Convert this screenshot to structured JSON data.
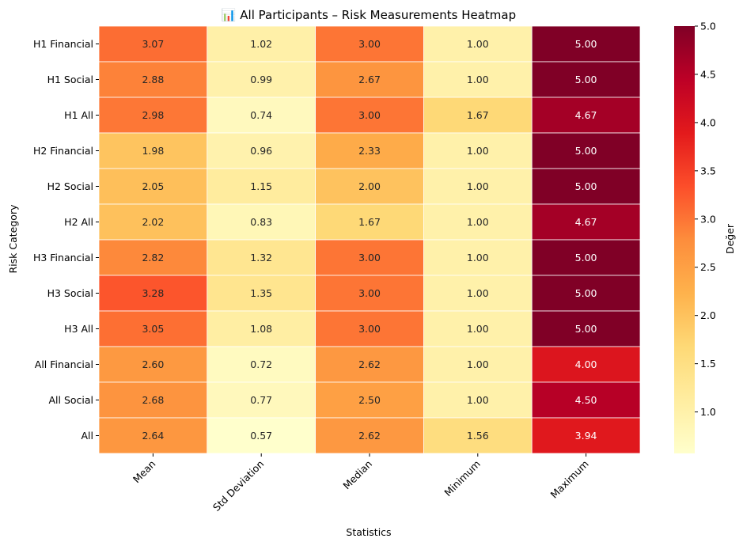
{
  "chart_data": {
    "type": "heatmap",
    "title": "📊 All Participants – Risk Measurements Heatmap",
    "xlabel": "Statistics",
    "ylabel": "Risk Category",
    "colorbar_label": "Değer",
    "colormap": "YlOrRd",
    "vmin": 0.57,
    "vmax": 5.0,
    "colorbar_ticks": [
      "1.0",
      "1.5",
      "2.0",
      "2.5",
      "3.0",
      "3.5",
      "4.0",
      "4.5",
      "5.0"
    ],
    "columns": [
      "Mean",
      "Std Deviation",
      "Median",
      "Minimum",
      "Maximum"
    ],
    "rows": [
      "H1 Financial",
      "H1 Social",
      "H1 All",
      "H2 Financial",
      "H2 Social",
      "H2 All",
      "H3 Financial",
      "H3 Social",
      "H3 All",
      "All Financial",
      "All Social",
      "All"
    ],
    "values": [
      [
        3.07,
        1.02,
        3.0,
        1.0,
        5.0
      ],
      [
        2.88,
        0.99,
        2.67,
        1.0,
        5.0
      ],
      [
        2.98,
        0.74,
        3.0,
        1.67,
        4.67
      ],
      [
        1.98,
        0.96,
        2.33,
        1.0,
        5.0
      ],
      [
        2.05,
        1.15,
        2.0,
        1.0,
        5.0
      ],
      [
        2.02,
        0.83,
        1.67,
        1.0,
        4.67
      ],
      [
        2.82,
        1.32,
        3.0,
        1.0,
        5.0
      ],
      [
        3.28,
        1.35,
        3.0,
        1.0,
        5.0
      ],
      [
        3.05,
        1.08,
        3.0,
        1.0,
        5.0
      ],
      [
        2.6,
        0.72,
        2.62,
        1.0,
        4.0
      ],
      [
        2.68,
        0.77,
        2.5,
        1.0,
        4.5
      ],
      [
        2.64,
        0.57,
        2.62,
        1.56,
        3.94
      ]
    ],
    "value_labels": [
      [
        "3.07",
        "1.02",
        "3.00",
        "1.00",
        "5.00"
      ],
      [
        "2.88",
        "0.99",
        "2.67",
        "1.00",
        "5.00"
      ],
      [
        "2.98",
        "0.74",
        "3.00",
        "1.67",
        "4.67"
      ],
      [
        "1.98",
        "0.96",
        "2.33",
        "1.00",
        "5.00"
      ],
      [
        "2.05",
        "1.15",
        "2.00",
        "1.00",
        "5.00"
      ],
      [
        "2.02",
        "0.83",
        "1.67",
        "1.00",
        "4.67"
      ],
      [
        "2.82",
        "1.32",
        "3.00",
        "1.00",
        "5.00"
      ],
      [
        "3.28",
        "1.35",
        "3.00",
        "1.00",
        "5.00"
      ],
      [
        "3.05",
        "1.08",
        "3.00",
        "1.00",
        "5.00"
      ],
      [
        "2.60",
        "0.72",
        "2.62",
        "1.00",
        "4.00"
      ],
      [
        "2.68",
        "0.77",
        "2.50",
        "1.00",
        "4.50"
      ],
      [
        "2.64",
        "0.57",
        "2.62",
        "1.56",
        "3.94"
      ]
    ]
  }
}
